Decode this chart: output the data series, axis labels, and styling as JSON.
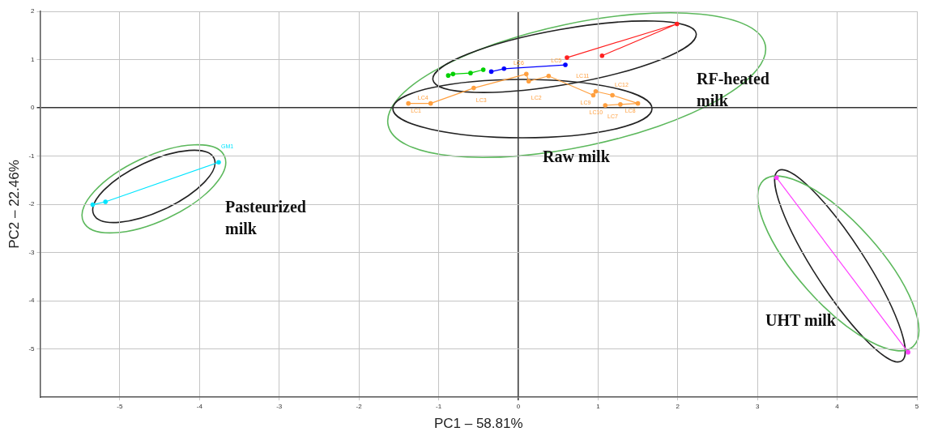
{
  "chart_data": {
    "type": "line",
    "xlabel": "PC1 – 58.81%",
    "ylabel": "PC2 – 22.46%",
    "xlim": [
      -6,
      5
    ],
    "xticks": [
      -5,
      -4,
      -3,
      -2,
      -1,
      0,
      1,
      2,
      3,
      4,
      5
    ],
    "ylim": [
      -6,
      2
    ],
    "yticks": [
      -5,
      -4,
      -3,
      -2,
      -1,
      0,
      1,
      2
    ],
    "grid": true,
    "legend": false,
    "marker": "circle",
    "line_style": "solid",
    "series": [
      {
        "color": "#ff2020",
        "x": [
          0.61,
          1.99,
          1.05
        ],
        "values": [
          1.04,
          1.74,
          1.08
        ]
      },
      {
        "color": "#0000ff",
        "x": [
          0.59,
          -0.18,
          -0.34
        ],
        "values": [
          0.89,
          0.81,
          0.75
        ]
      },
      {
        "color": "#00d000",
        "x": [
          -0.44,
          -0.6,
          -0.82,
          -0.88
        ],
        "values": [
          0.79,
          0.72,
          0.7,
          0.67
        ]
      },
      {
        "color": "#ffa040",
        "x": [
          -1.38,
          -1.1,
          -0.56,
          0.1,
          0.13,
          0.38,
          0.94,
          0.97,
          1.18,
          1.5,
          1.28,
          1.09
        ],
        "values": [
          0.09,
          0.09,
          0.41,
          0.7,
          0.55,
          0.66,
          0.26,
          0.34,
          0.26,
          0.09,
          0.07,
          0.05
        ]
      },
      {
        "color": "#00e5ff",
        "x": [
          -3.76,
          -5.18,
          -5.34
        ],
        "values": [
          -1.13,
          -1.95,
          -2.01
        ]
      },
      {
        "color": "#ff40ff",
        "x": [
          3.24,
          4.89
        ],
        "values": [
          -1.45,
          -5.07
        ]
      }
    ],
    "annotations": [
      "RF-heated\nmilk",
      "Raw milk",
      "Pasteurized\nmilk",
      "UHT milk",
      {
        "text": "LC1",
        "x": -1.38,
        "y": 0.09
      },
      {
        "text": "LC4",
        "x": -1.1,
        "y": 0.09
      },
      {
        "text": "LC3",
        "x": -0.56,
        "y": 0.41
      },
      {
        "text": "LC6",
        "x": 0.1,
        "y": 0.7
      },
      {
        "text": "LC2",
        "x": 0.13,
        "y": 0.55
      },
      {
        "text": "LC5",
        "x": 0.38,
        "y": 0.66
      },
      {
        "text": "LC9",
        "x": 0.94,
        "y": 0.26
      },
      {
        "text": "LC11",
        "x": 0.97,
        "y": 0.34
      },
      {
        "text": "LC12",
        "x": 1.18,
        "y": 0.26
      },
      {
        "text": "LC8",
        "x": 1.5,
        "y": 0.09
      },
      {
        "text": "LC7",
        "x": 1.28,
        "y": 0.07
      },
      {
        "text": "LC10",
        "x": 1.09,
        "y": 0.05
      },
      {
        "text": "GM1",
        "x": -3.76,
        "y": -1.13
      }
    ]
  }
}
